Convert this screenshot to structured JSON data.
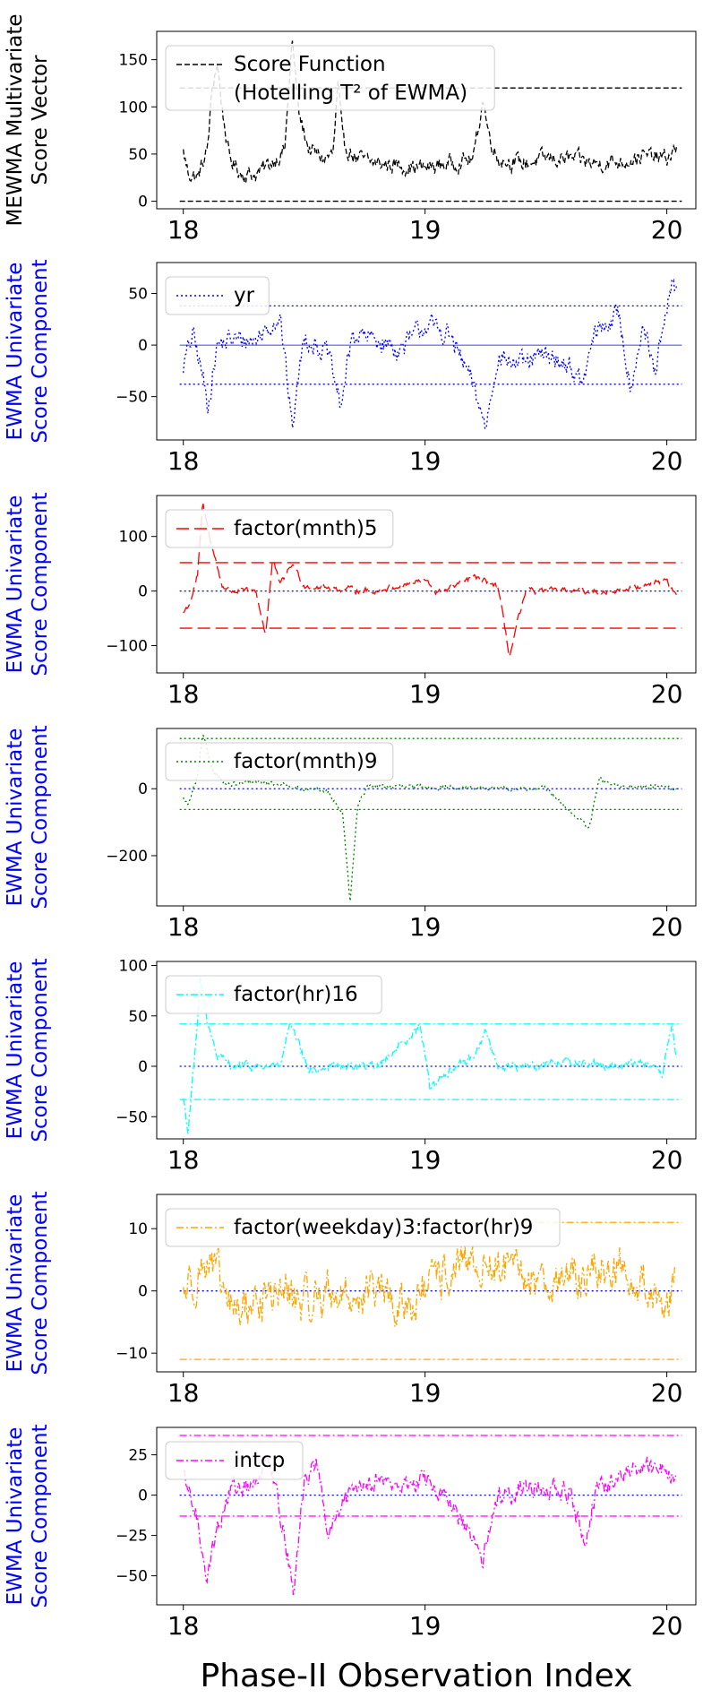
{
  "figure": {
    "xlabel": "Phase-II Observation Index",
    "x_tick_labels": [
      "18",
      "19",
      "20"
    ]
  },
  "chart_data": [
    {
      "type": "line",
      "ylabel": [
        "MEWMA Multivariate",
        "Score Vector"
      ],
      "ylabel_color": "#000000",
      "color": "#000000",
      "dash": "dashed",
      "legend": [
        "Score Function",
        "(Hotelling T² of EWMA)"
      ],
      "legend_placement": "top-left",
      "xlim": [
        17.89,
        20.12
      ],
      "ylim": [
        -8,
        180
      ],
      "yticks": [
        0,
        50,
        100,
        150
      ],
      "ytick_labels": [
        "0",
        "50",
        "100",
        "150"
      ],
      "x_range": [
        18.0,
        20.04
      ],
      "reference_lines": [
        {
          "y": 120,
          "color": "#000000",
          "style": "dashed"
        },
        {
          "y": 0,
          "color": "#000000",
          "style": "dashed"
        }
      ],
      "profile": [
        [
          18.0,
          52
        ],
        [
          18.02,
          30
        ],
        [
          18.06,
          25
        ],
        [
          18.1,
          55
        ],
        [
          18.12,
          120
        ],
        [
          18.14,
          148
        ],
        [
          18.16,
          100
        ],
        [
          18.19,
          45
        ],
        [
          18.24,
          30
        ],
        [
          18.3,
          28
        ],
        [
          18.36,
          40
        ],
        [
          18.42,
          55
        ],
        [
          18.45,
          170
        ],
        [
          18.48,
          90
        ],
        [
          18.52,
          55
        ],
        [
          18.58,
          45
        ],
        [
          18.62,
          50
        ],
        [
          18.64,
          125
        ],
        [
          18.66,
          60
        ],
        [
          18.72,
          45
        ],
        [
          18.8,
          40
        ],
        [
          18.9,
          38
        ],
        [
          19.0,
          35
        ],
        [
          19.1,
          40
        ],
        [
          19.2,
          45
        ],
        [
          19.24,
          110
        ],
        [
          19.26,
          75
        ],
        [
          19.3,
          45
        ],
        [
          19.4,
          40
        ],
        [
          19.5,
          45
        ],
        [
          19.6,
          45
        ],
        [
          19.7,
          40
        ],
        [
          19.8,
          42
        ],
        [
          19.9,
          48
        ],
        [
          20.0,
          45
        ],
        [
          20.04,
          55
        ]
      ],
      "noise": 10
    },
    {
      "type": "line",
      "ylabel": [
        "EWMA Univariate",
        "Score Component"
      ],
      "ylabel_color": "#0000ff",
      "color": "#0000ff",
      "dash": "dotted",
      "legend": [
        "yr"
      ],
      "legend_placement": "top-left",
      "xlim": [
        17.89,
        20.12
      ],
      "ylim": [
        -92,
        80
      ],
      "yticks": [
        -50,
        0,
        50
      ],
      "ytick_labels": [
        "−50",
        "0",
        "50"
      ],
      "x_range": [
        18.0,
        20.04
      ],
      "reference_lines": [
        {
          "y": 38,
          "color": "#0000ff",
          "style": "dotted"
        },
        {
          "y": -38,
          "color": "#0000ff",
          "style": "dotted"
        },
        {
          "y": 0,
          "color": "#0000ff",
          "style": "solid-thin"
        }
      ],
      "profile": [
        [
          18.0,
          -20
        ],
        [
          18.04,
          10
        ],
        [
          18.08,
          -30
        ],
        [
          18.1,
          -60
        ],
        [
          18.14,
          0
        ],
        [
          18.2,
          5
        ],
        [
          18.3,
          5
        ],
        [
          18.4,
          30
        ],
        [
          18.45,
          -80
        ],
        [
          18.5,
          10
        ],
        [
          18.6,
          -10
        ],
        [
          18.65,
          -60
        ],
        [
          18.7,
          10
        ],
        [
          18.8,
          5
        ],
        [
          18.9,
          -5
        ],
        [
          19.0,
          20
        ],
        [
          19.1,
          10
        ],
        [
          19.2,
          -40
        ],
        [
          19.25,
          -80
        ],
        [
          19.3,
          -10
        ],
        [
          19.4,
          -20
        ],
        [
          19.5,
          -10
        ],
        [
          19.6,
          -20
        ],
        [
          19.65,
          -40
        ],
        [
          19.7,
          10
        ],
        [
          19.8,
          30
        ],
        [
          19.85,
          -40
        ],
        [
          19.9,
          20
        ],
        [
          19.95,
          -30
        ],
        [
          20.0,
          30
        ],
        [
          20.02,
          60
        ],
        [
          20.04,
          55
        ]
      ],
      "noise": 12
    },
    {
      "type": "line",
      "ylabel": [
        "EWMA Univariate",
        "Score Component"
      ],
      "ylabel_color": "#0000ff",
      "color": "#ff0000",
      "dash": "long-dashed",
      "legend": [
        "factor(mnth)5"
      ],
      "legend_placement": "top-left",
      "xlim": [
        17.89,
        20.12
      ],
      "ylim": [
        -150,
        175
      ],
      "yticks": [
        -100,
        0,
        100
      ],
      "ytick_labels": [
        "−100",
        "0",
        "100"
      ],
      "x_range": [
        18.0,
        20.04
      ],
      "reference_lines": [
        {
          "y": 52,
          "color": "#ff0000",
          "style": "long-dashed"
        },
        {
          "y": -68,
          "color": "#ff0000",
          "style": "long-dashed"
        },
        {
          "y": 0,
          "color": "#0000ff",
          "style": "dotted"
        }
      ],
      "profile": [
        [
          18.0,
          -40
        ],
        [
          18.03,
          -20
        ],
        [
          18.06,
          30
        ],
        [
          18.08,
          160
        ],
        [
          18.12,
          80
        ],
        [
          18.16,
          10
        ],
        [
          18.2,
          0
        ],
        [
          18.3,
          0
        ],
        [
          18.34,
          -80
        ],
        [
          18.37,
          60
        ],
        [
          18.4,
          10
        ],
        [
          18.45,
          50
        ],
        [
          18.5,
          10
        ],
        [
          18.6,
          5
        ],
        [
          18.8,
          0
        ],
        [
          19.0,
          20
        ],
        [
          19.05,
          -5
        ],
        [
          19.2,
          25
        ],
        [
          19.3,
          10
        ],
        [
          19.35,
          -120
        ],
        [
          19.38,
          -60
        ],
        [
          19.42,
          0
        ],
        [
          19.6,
          0
        ],
        [
          19.8,
          0
        ],
        [
          20.0,
          20
        ],
        [
          20.04,
          -10
        ]
      ],
      "noise": 6
    },
    {
      "type": "line",
      "ylabel": [
        "EWMA Univariate",
        "Score Component"
      ],
      "ylabel_color": "#0000ff",
      "color": "#008000",
      "dash": "dotted",
      "legend": [
        "factor(mnth)9"
      ],
      "legend_placement": "top-left",
      "xlim": [
        17.89,
        20.12
      ],
      "ylim": [
        -350,
        180
      ],
      "yticks": [
        -200,
        0
      ],
      "ytick_labels": [
        "−200",
        "0"
      ],
      "x_range": [
        18.0,
        20.04
      ],
      "reference_lines": [
        {
          "y": 150,
          "color": "#008000",
          "style": "dotted"
        },
        {
          "y": -62,
          "color": "#008000",
          "style": "dotted"
        },
        {
          "y": 0,
          "color": "#0000ff",
          "style": "dotted"
        }
      ],
      "profile": [
        [
          18.0,
          -30
        ],
        [
          18.02,
          -50
        ],
        [
          18.06,
          40
        ],
        [
          18.08,
          160
        ],
        [
          18.12,
          60
        ],
        [
          18.18,
          10
        ],
        [
          18.3,
          20
        ],
        [
          18.4,
          15
        ],
        [
          18.5,
          0
        ],
        [
          18.6,
          -10
        ],
        [
          18.66,
          -80
        ],
        [
          18.69,
          -340
        ],
        [
          18.72,
          -60
        ],
        [
          18.76,
          10
        ],
        [
          18.9,
          5
        ],
        [
          19.1,
          5
        ],
        [
          19.3,
          0
        ],
        [
          19.5,
          0
        ],
        [
          19.68,
          -120
        ],
        [
          19.72,
          30
        ],
        [
          19.8,
          5
        ],
        [
          20.0,
          10
        ],
        [
          20.04,
          -5
        ]
      ],
      "noise": 8
    },
    {
      "type": "line",
      "ylabel": [
        "EWMA Univariate",
        "Score Component"
      ],
      "ylabel_color": "#0000ff",
      "color": "#00ffff",
      "dash": "dash-dot",
      "legend": [
        "factor(hr)16"
      ],
      "legend_placement": "top-left",
      "xlim": [
        17.89,
        20.12
      ],
      "ylim": [
        -72,
        104
      ],
      "yticks": [
        -50,
        0,
        50,
        100
      ],
      "ytick_labels": [
        "−50",
        "0",
        "50",
        "100"
      ],
      "x_range": [
        18.0,
        20.04
      ],
      "reference_lines": [
        {
          "y": 42,
          "color": "#00ffff",
          "style": "dash-dot"
        },
        {
          "y": -33,
          "color": "#00ffff",
          "style": "dash-dot"
        },
        {
          "y": 0,
          "color": "#0000ff",
          "style": "dotted"
        }
      ],
      "profile": [
        [
          18.0,
          -30
        ],
        [
          18.02,
          -65
        ],
        [
          18.05,
          20
        ],
        [
          18.07,
          90
        ],
        [
          18.1,
          40
        ],
        [
          18.14,
          10
        ],
        [
          18.2,
          0
        ],
        [
          18.4,
          0
        ],
        [
          18.44,
          40
        ],
        [
          18.48,
          20
        ],
        [
          18.52,
          -5
        ],
        [
          18.6,
          0
        ],
        [
          18.8,
          0
        ],
        [
          18.98,
          40
        ],
        [
          19.02,
          -20
        ],
        [
          19.1,
          -5
        ],
        [
          19.2,
          10
        ],
        [
          19.25,
          35
        ],
        [
          19.3,
          0
        ],
        [
          19.4,
          0
        ],
        [
          19.6,
          5
        ],
        [
          19.8,
          0
        ],
        [
          19.9,
          5
        ],
        [
          19.98,
          -10
        ],
        [
          20.02,
          40
        ],
        [
          20.04,
          10
        ]
      ],
      "noise": 5
    },
    {
      "type": "line",
      "ylabel": [
        "EWMA Univariate",
        "Score Component"
      ],
      "ylabel_color": "#0000ff",
      "color": "#ffa500",
      "dash": "dash-dot",
      "legend": [
        "factor(weekday)3:factor(hr)9"
      ],
      "legend_placement": "top-left",
      "xlim": [
        17.89,
        20.12
      ],
      "ylim": [
        -13,
        15.5
      ],
      "yticks": [
        -10,
        0,
        10
      ],
      "ytick_labels": [
        "−10",
        "0",
        "10"
      ],
      "x_range": [
        18.0,
        20.04
      ],
      "reference_lines": [
        {
          "y": 11,
          "color": "#ffa500",
          "style": "dash-dot"
        },
        {
          "y": -11,
          "color": "#ffa500",
          "style": "dash-dot"
        },
        {
          "y": 0,
          "color": "#0000ff",
          "style": "dotted"
        }
      ],
      "profile": [
        [
          18.0,
          0
        ],
        [
          18.1,
          5
        ],
        [
          18.2,
          -3
        ],
        [
          18.3,
          -2
        ],
        [
          18.4,
          0
        ],
        [
          18.5,
          -2
        ],
        [
          18.6,
          0
        ],
        [
          18.7,
          -1
        ],
        [
          18.8,
          0
        ],
        [
          18.9,
          -3
        ],
        [
          19.0,
          0
        ],
        [
          19.1,
          3
        ],
        [
          19.2,
          4
        ],
        [
          19.3,
          4
        ],
        [
          19.4,
          2
        ],
        [
          19.5,
          2
        ],
        [
          19.6,
          2
        ],
        [
          19.7,
          3
        ],
        [
          19.8,
          4
        ],
        [
          19.9,
          1
        ],
        [
          20.0,
          -2
        ],
        [
          20.04,
          3
        ]
      ],
      "noise": 4
    },
    {
      "type": "line",
      "ylabel": [
        "EWMA Univariate",
        "Score Component"
      ],
      "ylabel_color": "#0000ff",
      "color": "#ff00ff",
      "dash": "dash-dot",
      "legend": [
        "intcp"
      ],
      "legend_placement": "top-left",
      "xlim": [
        17.89,
        20.12
      ],
      "ylim": [
        -68,
        42
      ],
      "yticks": [
        -50,
        -25,
        0,
        25
      ],
      "ytick_labels": [
        "−50",
        "−25",
        "0",
        "25"
      ],
      "x_range": [
        18.0,
        20.04
      ],
      "reference_lines": [
        {
          "y": 37,
          "color": "#ff00ff",
          "style": "dash-dot"
        },
        {
          "y": -13,
          "color": "#ff00ff",
          "style": "dash-dot"
        },
        {
          "y": 0,
          "color": "#0000ff",
          "style": "dotted"
        }
      ],
      "profile": [
        [
          18.0,
          10
        ],
        [
          18.05,
          -10
        ],
        [
          18.1,
          -50
        ],
        [
          18.14,
          -20
        ],
        [
          18.2,
          5
        ],
        [
          18.3,
          5
        ],
        [
          18.35,
          30
        ],
        [
          18.4,
          -10
        ],
        [
          18.46,
          -60
        ],
        [
          18.5,
          10
        ],
        [
          18.55,
          20
        ],
        [
          18.6,
          -25
        ],
        [
          18.7,
          5
        ],
        [
          18.8,
          10
        ],
        [
          18.9,
          5
        ],
        [
          19.0,
          10
        ],
        [
          19.1,
          -5
        ],
        [
          19.2,
          -30
        ],
        [
          19.24,
          -40
        ],
        [
          19.3,
          0
        ],
        [
          19.4,
          5
        ],
        [
          19.5,
          5
        ],
        [
          19.6,
          0
        ],
        [
          19.66,
          -30
        ],
        [
          19.7,
          0
        ],
        [
          19.8,
          10
        ],
        [
          19.9,
          20
        ],
        [
          20.0,
          15
        ],
        [
          20.04,
          10
        ]
      ],
      "noise": 7
    }
  ]
}
